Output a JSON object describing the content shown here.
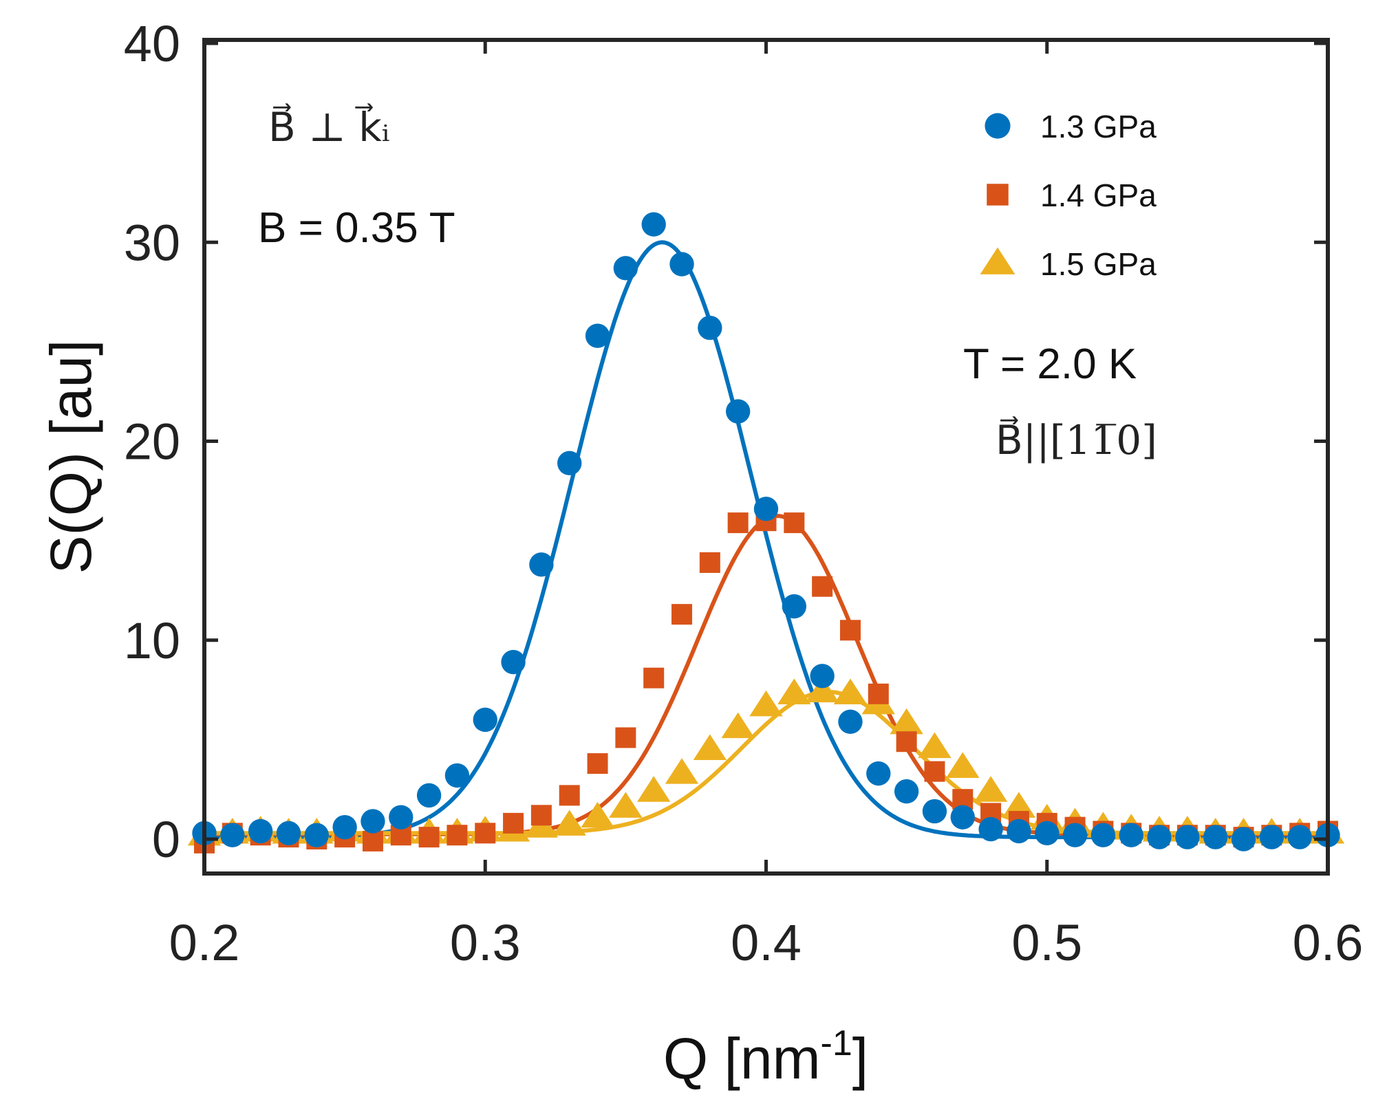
{
  "chart_data": {
    "type": "scatter",
    "title": "",
    "xlabel": "Q [nm",
    "xlabel_sup": "-1",
    "xlabel_end": "]",
    "ylabel": "S(Q)  [au]",
    "xlim": [
      0.2,
      0.6
    ],
    "ylim": [
      0,
      40
    ],
    "xticks": [
      0.2,
      0.3,
      0.4,
      0.5,
      0.6
    ],
    "xtick_labels": [
      "0.2",
      "0.3",
      "0.4",
      "0.5",
      "0.6"
    ],
    "yticks": [
      0,
      10,
      20,
      30,
      40
    ],
    "ytick_labels": [
      "0",
      "10",
      "20",
      "30",
      "40"
    ],
    "grid": false,
    "legend_position": "top-right",
    "annotations": {
      "geometry": "B⃗ ⊥ k⃗ᵢ",
      "field": "B = 0.35 T",
      "temperature": "T = 2.0 K",
      "orientation": "B⃗||[11̅0]"
    },
    "series": [
      {
        "name": "1.3 GPa",
        "marker": "circle",
        "color": "#0072BD",
        "x": [
          0.2,
          0.21,
          0.22,
          0.23,
          0.24,
          0.25,
          0.26,
          0.27,
          0.28,
          0.29,
          0.3,
          0.31,
          0.32,
          0.33,
          0.34,
          0.35,
          0.36,
          0.37,
          0.38,
          0.39,
          0.4,
          0.41,
          0.42,
          0.43,
          0.44,
          0.45,
          0.46,
          0.47,
          0.48,
          0.49,
          0.5,
          0.51,
          0.52,
          0.53,
          0.54,
          0.55,
          0.56,
          0.57,
          0.58,
          0.59,
          0.6
        ],
        "y": [
          0.3,
          0.2,
          0.4,
          0.3,
          0.2,
          0.6,
          0.9,
          1.1,
          2.2,
          3.2,
          6.0,
          8.9,
          13.8,
          18.9,
          25.3,
          28.7,
          30.9,
          28.9,
          25.7,
          21.5,
          16.6,
          11.7,
          8.2,
          5.9,
          3.3,
          2.4,
          1.4,
          1.1,
          0.5,
          0.4,
          0.3,
          0.2,
          0.2,
          0.2,
          0.1,
          0.1,
          0.1,
          0.0,
          0.1,
          0.1,
          0.2
        ],
        "fit": {
          "type": "gaussian",
          "amplitude": 29.9,
          "center": 0.363,
          "sigma": 0.0318,
          "offset": 0.1
        }
      },
      {
        "name": "1.4 GPa",
        "marker": "square",
        "color": "#D95319",
        "x": [
          0.2,
          0.21,
          0.22,
          0.23,
          0.24,
          0.25,
          0.26,
          0.27,
          0.28,
          0.29,
          0.3,
          0.31,
          0.32,
          0.33,
          0.34,
          0.35,
          0.36,
          0.37,
          0.38,
          0.39,
          0.4,
          0.41,
          0.42,
          0.43,
          0.44,
          0.45,
          0.46,
          0.47,
          0.48,
          0.49,
          0.5,
          0.51,
          0.52,
          0.53,
          0.54,
          0.55,
          0.56,
          0.57,
          0.58,
          0.59,
          0.6
        ],
        "y": [
          -0.2,
          0.3,
          0.2,
          0.1,
          0.0,
          0.1,
          -0.1,
          0.2,
          0.1,
          0.2,
          0.3,
          0.8,
          1.2,
          2.2,
          3.8,
          5.1,
          8.1,
          11.3,
          13.9,
          15.9,
          16.0,
          15.9,
          12.7,
          10.5,
          7.3,
          4.9,
          3.4,
          2.0,
          1.3,
          0.9,
          0.8,
          0.6,
          0.4,
          0.3,
          0.2,
          0.2,
          0.2,
          0.1,
          0.2,
          0.3,
          0.4
        ],
        "fit": {
          "type": "gaussian",
          "amplitude": 16.0,
          "center": 0.404,
          "sigma": 0.0285,
          "offset": 0.25
        }
      },
      {
        "name": "1.5 GPa",
        "marker": "triangle",
        "color": "#EDB120",
        "x": [
          0.2,
          0.21,
          0.22,
          0.23,
          0.24,
          0.25,
          0.26,
          0.27,
          0.28,
          0.29,
          0.3,
          0.31,
          0.32,
          0.33,
          0.34,
          0.35,
          0.36,
          0.37,
          0.38,
          0.39,
          0.4,
          0.41,
          0.42,
          0.43,
          0.44,
          0.45,
          0.46,
          0.47,
          0.48,
          0.49,
          0.5,
          0.51,
          0.52,
          0.53,
          0.54,
          0.55,
          0.56,
          0.57,
          0.58,
          0.59,
          0.6
        ],
        "y": [
          0.2,
          0.3,
          0.4,
          0.3,
          0.3,
          0.4,
          0.3,
          0.3,
          0.3,
          0.3,
          0.4,
          0.4,
          0.6,
          0.7,
          1.1,
          1.6,
          2.4,
          3.3,
          4.5,
          5.6,
          6.7,
          7.3,
          7.4,
          7.3,
          6.8,
          5.8,
          4.6,
          3.6,
          2.4,
          1.6,
          1.0,
          0.8,
          0.6,
          0.5,
          0.4,
          0.4,
          0.3,
          0.3,
          0.3,
          0.3,
          0.3
        ],
        "fit": {
          "type": "gaussian",
          "amplitude": 7.1,
          "center": 0.422,
          "sigma": 0.0305,
          "offset": 0.3
        }
      }
    ]
  }
}
